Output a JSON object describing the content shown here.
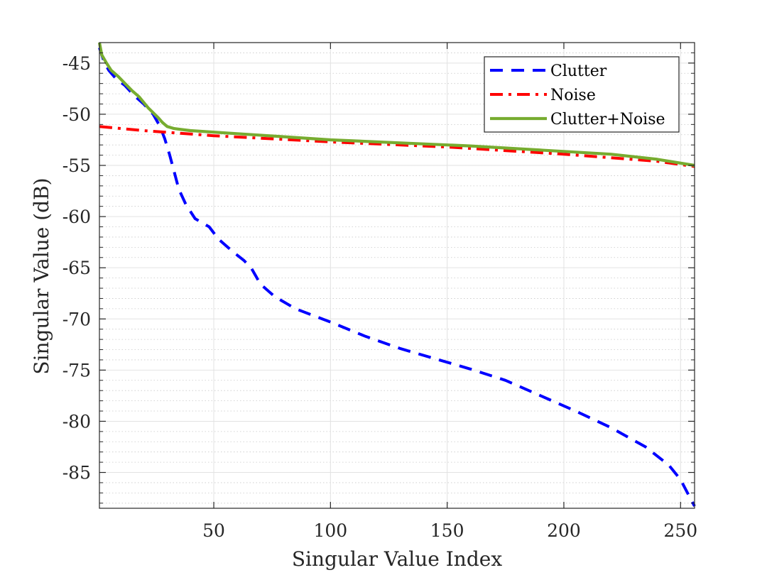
{
  "chart_data": {
    "type": "line",
    "title": "",
    "xlabel": "Singular Value Index",
    "ylabel": "Singular Value (dB)",
    "xlim": [
      1,
      256
    ],
    "ylim": [
      -88.5,
      -43
    ],
    "xticks": [
      50,
      100,
      150,
      200,
      250
    ],
    "yticks": [
      -45,
      -50,
      -55,
      -60,
      -65,
      -70,
      -75,
      -80,
      -85
    ],
    "grid": true,
    "minor_grid_y": true,
    "legend_position": "top-right",
    "series": [
      {
        "name": "Clutter",
        "color": "#0000ff",
        "style": "dashed",
        "points": [
          [
            1,
            -43.5
          ],
          [
            3,
            -44.9
          ],
          [
            5,
            -45.7
          ],
          [
            8,
            -46.5
          ],
          [
            12,
            -47.2
          ],
          [
            16,
            -48.2
          ],
          [
            20,
            -49.0
          ],
          [
            24,
            -50.0
          ],
          [
            27,
            -51.2
          ],
          [
            29,
            -52.4
          ],
          [
            31,
            -53.9
          ],
          [
            33,
            -55.6
          ],
          [
            35,
            -57.3
          ],
          [
            38,
            -58.8
          ],
          [
            42,
            -60.2
          ],
          [
            48,
            -61.0
          ],
          [
            52,
            -62.2
          ],
          [
            58,
            -63.4
          ],
          [
            63,
            -64.3
          ],
          [
            66,
            -65.0
          ],
          [
            70,
            -66.6
          ],
          [
            76,
            -67.8
          ],
          [
            85,
            -69.0
          ],
          [
            100,
            -70.3
          ],
          [
            115,
            -71.7
          ],
          [
            130,
            -72.9
          ],
          [
            145,
            -73.9
          ],
          [
            160,
            -74.9
          ],
          [
            175,
            -76.0
          ],
          [
            190,
            -77.5
          ],
          [
            205,
            -79.0
          ],
          [
            220,
            -80.6
          ],
          [
            235,
            -82.5
          ],
          [
            245,
            -84.3
          ],
          [
            250,
            -85.7
          ],
          [
            253,
            -87.0
          ],
          [
            256,
            -88.3
          ]
        ]
      },
      {
        "name": "Noise",
        "color": "#ff0000",
        "style": "dashdot",
        "points": [
          [
            1,
            -51.2
          ],
          [
            20,
            -51.6
          ],
          [
            50,
            -52.1
          ],
          [
            100,
            -52.7
          ],
          [
            150,
            -53.2
          ],
          [
            200,
            -53.9
          ],
          [
            240,
            -54.6
          ],
          [
            256,
            -55.1
          ]
        ]
      },
      {
        "name": "Clutter+Noise",
        "color": "#77ac30",
        "style": "solid",
        "points": [
          [
            1,
            -43.0
          ],
          [
            2,
            -44.2
          ],
          [
            4,
            -45.0
          ],
          [
            6,
            -45.7
          ],
          [
            9,
            -46.3
          ],
          [
            12,
            -47.0
          ],
          [
            15,
            -47.7
          ],
          [
            18,
            -48.3
          ],
          [
            22,
            -49.4
          ],
          [
            26,
            -50.3
          ],
          [
            28,
            -50.8
          ],
          [
            30,
            -51.2
          ],
          [
            33,
            -51.4
          ],
          [
            40,
            -51.6
          ],
          [
            60,
            -51.9
          ],
          [
            80,
            -52.2
          ],
          [
            100,
            -52.5
          ],
          [
            130,
            -52.8
          ],
          [
            160,
            -53.1
          ],
          [
            190,
            -53.5
          ],
          [
            220,
            -53.9
          ],
          [
            240,
            -54.4
          ],
          [
            256,
            -55.0
          ]
        ]
      }
    ]
  }
}
